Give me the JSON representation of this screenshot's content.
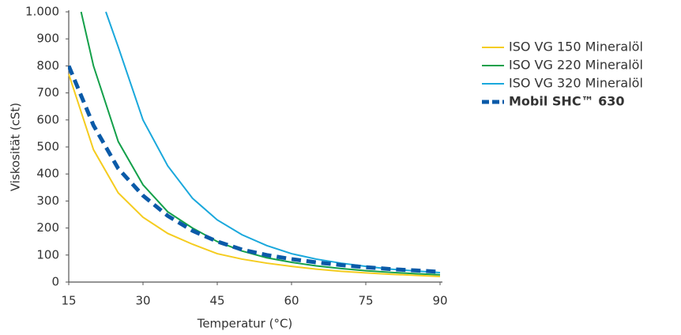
{
  "chart_data": {
    "type": "line",
    "xlabel": "Temperatur (°C)",
    "ylabel": "Viskosität (cSt)",
    "xlim": [
      15,
      90
    ],
    "xticks": [
      15,
      30,
      45,
      60,
      75,
      90
    ],
    "ylim": [
      0,
      1000
    ],
    "yticks": [
      0,
      100,
      200,
      300,
      400,
      500,
      600,
      700,
      800,
      900,
      {
        "value": 1000,
        "label": "1.000"
      }
    ],
    "grid": false,
    "legend": "right",
    "series": [
      {
        "name": "ISO VG 150 Mineralöl",
        "color": "#f5cc1f",
        "dashed": false,
        "bold": false,
        "x": [
          15,
          20,
          25,
          30,
          35,
          40,
          45,
          50,
          55,
          60,
          65,
          70,
          75,
          80,
          85,
          90
        ],
        "values": [
          770,
          490,
          330,
          240,
          180,
          140,
          105,
          85,
          70,
          58,
          48,
          40,
          34,
          29,
          25,
          21
        ]
      },
      {
        "name": "ISO VG 220 Mineralöl",
        "color": "#14a04a",
        "dashed": false,
        "bold": false,
        "x": [
          17.5,
          20,
          25,
          30,
          35,
          40,
          45,
          50,
          55,
          60,
          65,
          70,
          75,
          80,
          85,
          90
        ],
        "values": [
          1000,
          800,
          520,
          360,
          260,
          200,
          150,
          115,
          90,
          73,
          60,
          50,
          42,
          36,
          31,
          27
        ]
      },
      {
        "name": "ISO VG 320 Mineralöl",
        "color": "#1aa8dc",
        "dashed": false,
        "bold": false,
        "x": [
          22.5,
          25,
          30,
          35,
          40,
          45,
          50,
          55,
          60,
          65,
          70,
          75,
          80,
          85,
          90
        ],
        "values": [
          1000,
          870,
          600,
          430,
          310,
          230,
          175,
          135,
          105,
          85,
          70,
          58,
          48,
          41,
          35
        ]
      },
      {
        "name": "Mobil SHC™ 630",
        "color": "#0a5aa8",
        "dashed": true,
        "bold": true,
        "x": [
          15,
          20,
          25,
          30,
          35,
          40,
          45,
          50,
          55,
          60,
          65,
          70,
          75,
          80,
          85,
          90
        ],
        "values": [
          800,
          580,
          420,
          320,
          245,
          190,
          150,
          120,
          100,
          85,
          73,
          63,
          55,
          48,
          43,
          38
        ]
      }
    ]
  }
}
